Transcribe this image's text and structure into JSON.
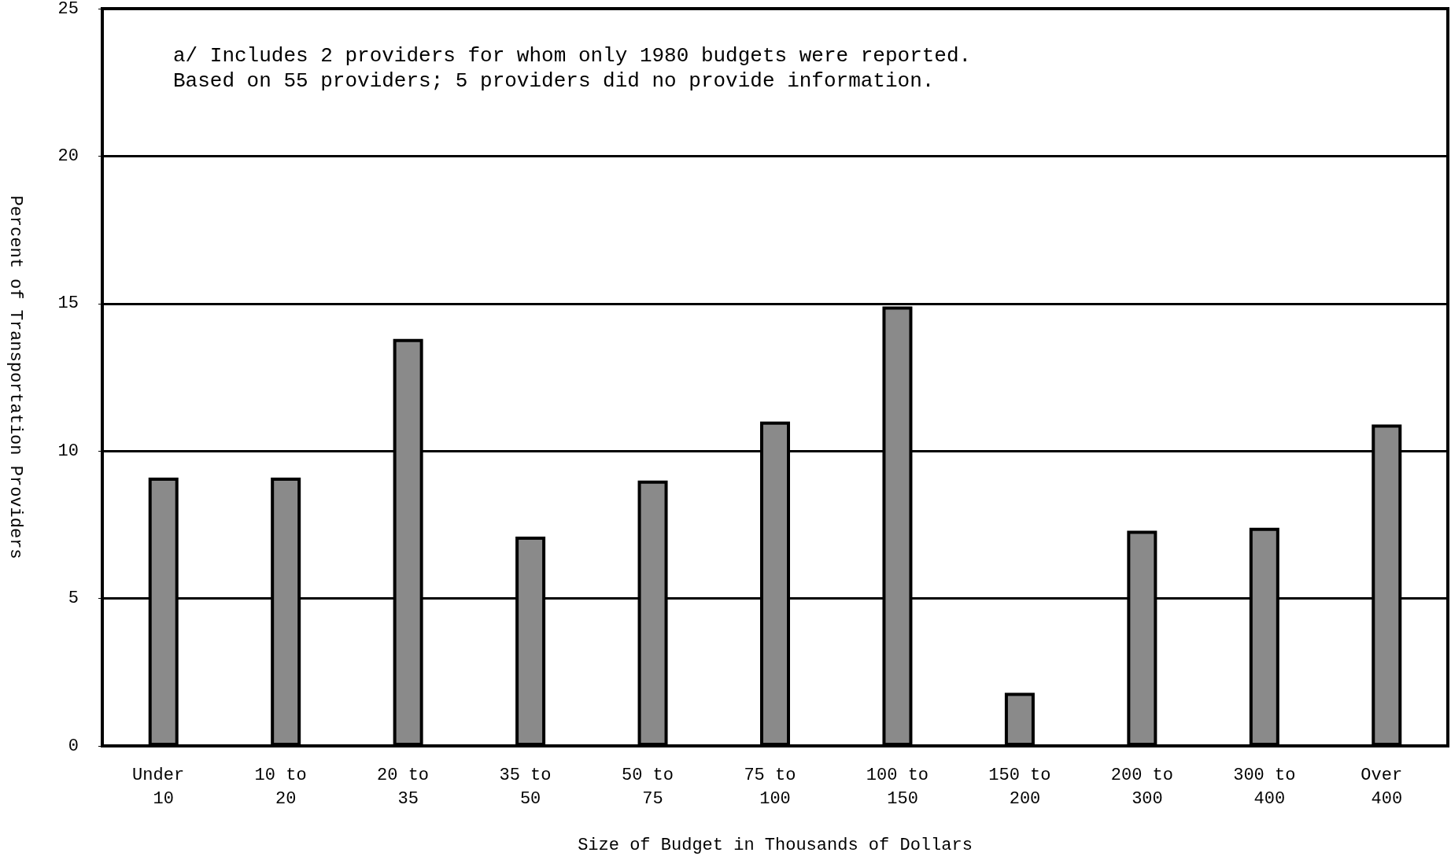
{
  "chart_data": {
    "type": "bar",
    "xlabel": "Size of Budget in Thousands of Dollars",
    "ylabel": "Percent of Transportation Providers",
    "annotations": [
      "a/ Includes 2 providers for whom only 1980 budgets were reported.\nBased on 55 providers; 5 providers did no provide information."
    ],
    "categories": [
      "Under 10",
      "10 to 20",
      "20 to 35",
      "35 to 50",
      "50 to 75",
      "75 to 100",
      "100 to 150",
      "150 to 200",
      "200 to 300",
      "300 to 400",
      "Over 400"
    ],
    "values": [
      9.1,
      9.1,
      13.8,
      7.1,
      9.0,
      11.0,
      14.9,
      1.8,
      7.3,
      7.4,
      10.9
    ],
    "color": "#8a8a8a",
    "ylim": [
      0,
      25
    ],
    "yticks": [
      0,
      5,
      10,
      15,
      20,
      25
    ],
    "grid": "y"
  }
}
